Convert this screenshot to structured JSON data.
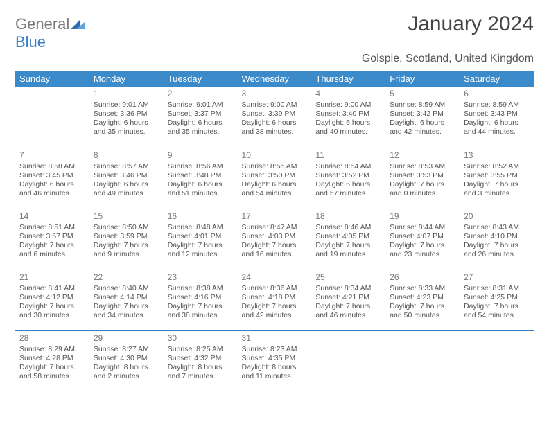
{
  "logo": {
    "line1": "General",
    "line2": "Blue"
  },
  "title": "January 2024",
  "location": "Golspie, Scotland, United Kingdom",
  "header_bg": "#3b8aca",
  "header_fg": "#ffffff",
  "divider_color": "#3b7fc4",
  "day_headers": [
    "Sunday",
    "Monday",
    "Tuesday",
    "Wednesday",
    "Thursday",
    "Friday",
    "Saturday"
  ],
  "weeks": [
    [
      null,
      {
        "n": "1",
        "sr": "Sunrise: 9:01 AM",
        "ss": "Sunset: 3:36 PM",
        "d1": "Daylight: 6 hours",
        "d2": "and 35 minutes."
      },
      {
        "n": "2",
        "sr": "Sunrise: 9:01 AM",
        "ss": "Sunset: 3:37 PM",
        "d1": "Daylight: 6 hours",
        "d2": "and 35 minutes."
      },
      {
        "n": "3",
        "sr": "Sunrise: 9:00 AM",
        "ss": "Sunset: 3:39 PM",
        "d1": "Daylight: 6 hours",
        "d2": "and 38 minutes."
      },
      {
        "n": "4",
        "sr": "Sunrise: 9:00 AM",
        "ss": "Sunset: 3:40 PM",
        "d1": "Daylight: 6 hours",
        "d2": "and 40 minutes."
      },
      {
        "n": "5",
        "sr": "Sunrise: 8:59 AM",
        "ss": "Sunset: 3:42 PM",
        "d1": "Daylight: 6 hours",
        "d2": "and 42 minutes."
      },
      {
        "n": "6",
        "sr": "Sunrise: 8:59 AM",
        "ss": "Sunset: 3:43 PM",
        "d1": "Daylight: 6 hours",
        "d2": "and 44 minutes."
      }
    ],
    [
      {
        "n": "7",
        "sr": "Sunrise: 8:58 AM",
        "ss": "Sunset: 3:45 PM",
        "d1": "Daylight: 6 hours",
        "d2": "and 46 minutes."
      },
      {
        "n": "8",
        "sr": "Sunrise: 8:57 AM",
        "ss": "Sunset: 3:46 PM",
        "d1": "Daylight: 6 hours",
        "d2": "and 49 minutes."
      },
      {
        "n": "9",
        "sr": "Sunrise: 8:56 AM",
        "ss": "Sunset: 3:48 PM",
        "d1": "Daylight: 6 hours",
        "d2": "and 51 minutes."
      },
      {
        "n": "10",
        "sr": "Sunrise: 8:55 AM",
        "ss": "Sunset: 3:50 PM",
        "d1": "Daylight: 6 hours",
        "d2": "and 54 minutes."
      },
      {
        "n": "11",
        "sr": "Sunrise: 8:54 AM",
        "ss": "Sunset: 3:52 PM",
        "d1": "Daylight: 6 hours",
        "d2": "and 57 minutes."
      },
      {
        "n": "12",
        "sr": "Sunrise: 8:53 AM",
        "ss": "Sunset: 3:53 PM",
        "d1": "Daylight: 7 hours",
        "d2": "and 0 minutes."
      },
      {
        "n": "13",
        "sr": "Sunrise: 8:52 AM",
        "ss": "Sunset: 3:55 PM",
        "d1": "Daylight: 7 hours",
        "d2": "and 3 minutes."
      }
    ],
    [
      {
        "n": "14",
        "sr": "Sunrise: 8:51 AM",
        "ss": "Sunset: 3:57 PM",
        "d1": "Daylight: 7 hours",
        "d2": "and 6 minutes."
      },
      {
        "n": "15",
        "sr": "Sunrise: 8:50 AM",
        "ss": "Sunset: 3:59 PM",
        "d1": "Daylight: 7 hours",
        "d2": "and 9 minutes."
      },
      {
        "n": "16",
        "sr": "Sunrise: 8:48 AM",
        "ss": "Sunset: 4:01 PM",
        "d1": "Daylight: 7 hours",
        "d2": "and 12 minutes."
      },
      {
        "n": "17",
        "sr": "Sunrise: 8:47 AM",
        "ss": "Sunset: 4:03 PM",
        "d1": "Daylight: 7 hours",
        "d2": "and 16 minutes."
      },
      {
        "n": "18",
        "sr": "Sunrise: 8:46 AM",
        "ss": "Sunset: 4:05 PM",
        "d1": "Daylight: 7 hours",
        "d2": "and 19 minutes."
      },
      {
        "n": "19",
        "sr": "Sunrise: 8:44 AM",
        "ss": "Sunset: 4:07 PM",
        "d1": "Daylight: 7 hours",
        "d2": "and 23 minutes."
      },
      {
        "n": "20",
        "sr": "Sunrise: 8:43 AM",
        "ss": "Sunset: 4:10 PM",
        "d1": "Daylight: 7 hours",
        "d2": "and 26 minutes."
      }
    ],
    [
      {
        "n": "21",
        "sr": "Sunrise: 8:41 AM",
        "ss": "Sunset: 4:12 PM",
        "d1": "Daylight: 7 hours",
        "d2": "and 30 minutes."
      },
      {
        "n": "22",
        "sr": "Sunrise: 8:40 AM",
        "ss": "Sunset: 4:14 PM",
        "d1": "Daylight: 7 hours",
        "d2": "and 34 minutes."
      },
      {
        "n": "23",
        "sr": "Sunrise: 8:38 AM",
        "ss": "Sunset: 4:16 PM",
        "d1": "Daylight: 7 hours",
        "d2": "and 38 minutes."
      },
      {
        "n": "24",
        "sr": "Sunrise: 8:36 AM",
        "ss": "Sunset: 4:18 PM",
        "d1": "Daylight: 7 hours",
        "d2": "and 42 minutes."
      },
      {
        "n": "25",
        "sr": "Sunrise: 8:34 AM",
        "ss": "Sunset: 4:21 PM",
        "d1": "Daylight: 7 hours",
        "d2": "and 46 minutes."
      },
      {
        "n": "26",
        "sr": "Sunrise: 8:33 AM",
        "ss": "Sunset: 4:23 PM",
        "d1": "Daylight: 7 hours",
        "d2": "and 50 minutes."
      },
      {
        "n": "27",
        "sr": "Sunrise: 8:31 AM",
        "ss": "Sunset: 4:25 PM",
        "d1": "Daylight: 7 hours",
        "d2": "and 54 minutes."
      }
    ],
    [
      {
        "n": "28",
        "sr": "Sunrise: 8:29 AM",
        "ss": "Sunset: 4:28 PM",
        "d1": "Daylight: 7 hours",
        "d2": "and 58 minutes."
      },
      {
        "n": "29",
        "sr": "Sunrise: 8:27 AM",
        "ss": "Sunset: 4:30 PM",
        "d1": "Daylight: 8 hours",
        "d2": "and 2 minutes."
      },
      {
        "n": "30",
        "sr": "Sunrise: 8:25 AM",
        "ss": "Sunset: 4:32 PM",
        "d1": "Daylight: 8 hours",
        "d2": "and 7 minutes."
      },
      {
        "n": "31",
        "sr": "Sunrise: 8:23 AM",
        "ss": "Sunset: 4:35 PM",
        "d1": "Daylight: 8 hours",
        "d2": "and 11 minutes."
      },
      null,
      null,
      null
    ]
  ]
}
